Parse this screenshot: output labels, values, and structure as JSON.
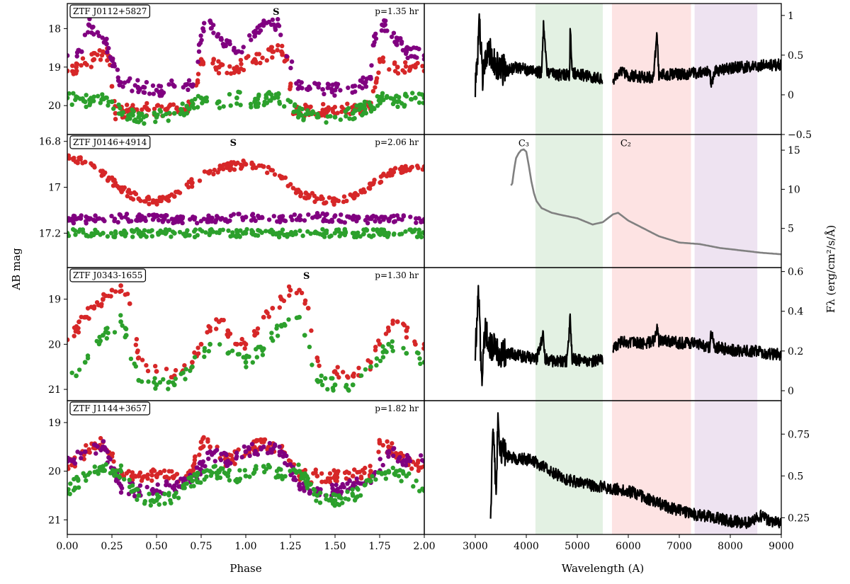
{
  "figure": {
    "left_ylabel": "AB mag",
    "right_ylabel": "Fλ (erg/cm²/s/Å)",
    "left_xlabel": "Phase",
    "right_xlabel": "Wavelength (A)"
  },
  "colors": {
    "g": "#2ca02c",
    "r": "#d62728",
    "i": "#800080",
    "spectrum": "#000000",
    "spectrum_alt": "#808080",
    "band_g": "#e3f1e3",
    "band_r": "#fde3e3",
    "band_i": "#eee3f1"
  },
  "chart_data": [
    {
      "type": "scatter",
      "panel": "light_curve",
      "object": "ZTF J0112+5827",
      "period_label": "p=1.35 hr",
      "marker": "S",
      "marker_phase": 1.17,
      "xlim": [
        0,
        2
      ],
      "ylim": [
        20.75,
        17.35
      ],
      "inverted_y": true,
      "yticks": [
        18,
        19,
        20
      ],
      "series": [
        {
          "band": "r",
          "x": [
            0.0,
            0.05,
            0.1,
            0.15,
            0.2,
            0.23,
            0.25,
            0.27,
            0.35,
            0.45,
            0.55,
            0.65,
            0.7,
            0.73,
            0.75,
            0.85,
            0.95,
            1.05,
            1.15,
            1.2,
            1.23,
            1.25,
            1.27,
            1.35,
            1.45,
            1.55,
            1.65,
            1.7,
            1.73,
            1.75,
            1.85,
            1.95,
            2.0
          ],
          "y": [
            19.1,
            19.0,
            18.9,
            18.8,
            18.6,
            18.7,
            19.5,
            20.2,
            20.1,
            20.1,
            20.1,
            20.1,
            20.0,
            19.4,
            18.8,
            19.0,
            19.0,
            18.8,
            18.6,
            18.6,
            18.8,
            19.5,
            20.2,
            20.1,
            20.1,
            20.1,
            20.1,
            20.0,
            19.4,
            18.8,
            19.0,
            19.0,
            19.1
          ]
        },
        {
          "band": "g",
          "x": [
            0.0,
            0.1,
            0.2,
            0.25,
            0.3,
            0.4,
            0.5,
            0.6,
            0.7,
            0.75,
            0.85,
            0.95,
            1.05,
            1.15,
            1.25,
            1.3,
            1.4,
            1.5,
            1.6,
            1.7,
            1.75,
            1.85,
            1.95,
            2.0
          ],
          "y": [
            19.8,
            19.9,
            19.8,
            19.9,
            20.2,
            20.3,
            20.3,
            20.2,
            20.0,
            19.8,
            19.9,
            19.8,
            19.9,
            19.8,
            19.9,
            20.2,
            20.3,
            20.3,
            20.2,
            20.0,
            19.8,
            19.9,
            19.8,
            19.8
          ]
        },
        {
          "band": "i",
          "x": [
            0.0,
            0.08,
            0.12,
            0.17,
            0.22,
            0.3,
            0.5,
            0.6,
            0.7,
            0.76,
            0.8,
            0.84,
            0.95,
            1.05,
            1.1,
            1.18,
            1.3,
            1.5,
            1.6,
            1.7,
            1.72,
            1.78,
            1.9,
            2.0
          ],
          "y": [
            18.7,
            18.6,
            17.9,
            18.1,
            18.4,
            19.4,
            19.6,
            19.5,
            19.5,
            18.0,
            17.8,
            18.2,
            18.6,
            18.2,
            17.9,
            17.9,
            19.5,
            19.6,
            19.5,
            19.3,
            18.2,
            17.9,
            18.6,
            18.7
          ]
        }
      ]
    },
    {
      "type": "scatter",
      "panel": "light_curve",
      "object": "ZTF J0146+4914",
      "period_label": "p=2.06 hr",
      "marker": "S",
      "marker_phase": 0.93,
      "xlim": [
        0,
        2
      ],
      "ylim": [
        17.35,
        16.77
      ],
      "inverted_y": true,
      "yticks": [
        16.8,
        17.0,
        17.2
      ],
      "series": [
        {
          "band": "r",
          "x": [
            0.0,
            0.1,
            0.2,
            0.3,
            0.4,
            0.5,
            0.6,
            0.7,
            0.8,
            0.9,
            1.0,
            1.1,
            1.2,
            1.3,
            1.4,
            1.5,
            1.6,
            1.7,
            1.8,
            1.9,
            2.0
          ],
          "y": [
            16.87,
            16.89,
            16.94,
            17.01,
            17.05,
            17.06,
            17.04,
            16.98,
            16.93,
            16.91,
            16.9,
            16.91,
            16.96,
            17.02,
            17.05,
            17.06,
            17.04,
            16.99,
            16.94,
            16.92,
            16.91
          ]
        },
        {
          "band": "i",
          "x": [
            0.0,
            0.2,
            0.4,
            0.6,
            0.8,
            1.0,
            1.2,
            1.4,
            1.6,
            1.8,
            2.0
          ],
          "y": [
            17.14,
            17.14,
            17.13,
            17.14,
            17.14,
            17.13,
            17.14,
            17.13,
            17.14,
            17.14,
            17.14
          ]
        },
        {
          "band": "g",
          "x": [
            0.0,
            0.2,
            0.4,
            0.6,
            0.8,
            1.0,
            1.2,
            1.4,
            1.6,
            1.8,
            2.0
          ],
          "y": [
            17.2,
            17.2,
            17.2,
            17.2,
            17.2,
            17.2,
            17.2,
            17.2,
            17.2,
            17.2,
            17.2
          ]
        }
      ]
    },
    {
      "type": "scatter",
      "panel": "light_curve",
      "object": "ZTF J0343-1655",
      "period_label": "p=1.30 hr",
      "marker": "S",
      "marker_phase": 1.34,
      "xlim": [
        0,
        2
      ],
      "ylim": [
        21.25,
        18.3
      ],
      "inverted_y": true,
      "yticks": [
        19,
        20,
        21
      ],
      "series": [
        {
          "band": "r",
          "x": [
            0.0,
            0.05,
            0.1,
            0.15,
            0.2,
            0.25,
            0.3,
            0.35,
            0.4,
            0.5,
            0.6,
            0.7,
            0.75,
            0.8,
            0.85,
            0.9,
            0.95,
            1.0,
            1.05,
            1.1,
            1.15,
            1.2,
            1.25,
            1.3,
            1.35,
            1.4,
            1.5,
            1.6,
            1.7,
            1.75,
            1.8,
            1.85,
            1.9,
            1.95,
            2.0
          ],
          "y": [
            19.9,
            19.7,
            19.4,
            19.2,
            19.0,
            18.8,
            18.7,
            19.1,
            20.3,
            20.6,
            20.7,
            20.4,
            20.0,
            19.7,
            19.5,
            19.7,
            20.0,
            20.0,
            19.8,
            19.4,
            19.2,
            19.0,
            18.8,
            18.8,
            19.2,
            20.3,
            20.6,
            20.7,
            20.4,
            20.0,
            19.7,
            19.5,
            19.7,
            20.0,
            20.0
          ]
        },
        {
          "band": "g",
          "x": [
            0.05,
            0.1,
            0.2,
            0.3,
            0.33,
            0.4,
            0.5,
            0.6,
            0.7,
            0.8,
            0.9,
            1.0,
            1.1,
            1.2,
            1.3,
            1.33,
            1.4,
            1.5,
            1.6,
            1.7,
            1.8,
            1.9,
            2.0
          ],
          "y": [
            20.7,
            20.4,
            19.8,
            19.5,
            19.8,
            20.8,
            20.9,
            20.9,
            20.5,
            20.0,
            20.2,
            20.4,
            20.1,
            19.6,
            19.4,
            19.8,
            20.8,
            20.9,
            20.9,
            20.5,
            20.0,
            20.2,
            20.4
          ]
        }
      ]
    },
    {
      "type": "scatter",
      "panel": "light_curve",
      "object": "ZTF J1144+3657",
      "period_label": "p=1.82 hr",
      "xlim": [
        0,
        2
      ],
      "ylim": [
        21.3,
        18.55
      ],
      "inverted_y": true,
      "yticks": [
        19,
        20,
        21
      ],
      "series": [
        {
          "band": "r",
          "x": [
            0.0,
            0.1,
            0.2,
            0.25,
            0.3,
            0.4,
            0.5,
            0.6,
            0.7,
            0.75,
            0.8,
            0.9,
            1.0,
            1.1,
            1.2,
            1.25,
            1.3,
            1.4,
            1.5,
            1.6,
            1.7,
            1.75,
            1.8,
            1.9,
            2.0
          ],
          "y": [
            19.9,
            19.6,
            19.4,
            19.7,
            20.1,
            20.1,
            20.1,
            20.1,
            20.0,
            19.4,
            19.5,
            19.8,
            19.6,
            19.4,
            19.5,
            19.8,
            20.1,
            20.1,
            20.1,
            20.1,
            20.0,
            19.4,
            19.5,
            19.8,
            19.9
          ]
        },
        {
          "band": "i",
          "x": [
            0.0,
            0.1,
            0.2,
            0.3,
            0.4,
            0.5,
            0.6,
            0.7,
            0.8,
            0.9,
            1.0,
            1.1,
            1.2,
            1.3,
            1.4,
            1.5,
            1.6,
            1.7,
            1.8,
            1.9,
            2.0
          ],
          "y": [
            19.8,
            19.6,
            19.5,
            20.3,
            20.4,
            20.4,
            20.3,
            20.2,
            19.6,
            19.8,
            19.6,
            19.5,
            19.6,
            20.3,
            20.4,
            20.4,
            20.3,
            20.2,
            19.6,
            19.8,
            19.8
          ]
        },
        {
          "band": "g",
          "x": [
            0.0,
            0.1,
            0.2,
            0.3,
            0.4,
            0.5,
            0.6,
            0.7,
            0.8,
            0.9,
            1.0,
            1.1,
            1.2,
            1.3,
            1.4,
            1.5,
            1.6,
            1.7,
            1.8,
            1.9,
            2.0
          ],
          "y": [
            20.4,
            20.1,
            19.9,
            20.0,
            20.5,
            20.6,
            20.5,
            20.2,
            20.0,
            20.1,
            20.1,
            19.9,
            20.1,
            20.0,
            20.5,
            20.6,
            20.5,
            20.2,
            20.0,
            20.1,
            20.4
          ]
        }
      ]
    },
    {
      "type": "line",
      "panel": "spectrum",
      "object": "ZTF J0112+5827",
      "xlim": [
        2000,
        9000
      ],
      "ylim": [
        -0.5,
        1.15
      ],
      "yticks": [
        -0.5,
        0.0,
        0.5,
        1.0
      ],
      "series": [
        {
          "name": "",
          "x": [
            3000,
            3080,
            3150,
            3250,
            3400,
            3600,
            3800,
            4100,
            4300,
            4340,
            4400,
            4600,
            4850,
            4861,
            4900,
            5100,
            5300,
            5500
          ],
          "y": [
            0.1,
            0.85,
            0.2,
            0.6,
            0.35,
            0.3,
            0.35,
            0.3,
            0.28,
            0.9,
            0.3,
            0.25,
            0.25,
            0.88,
            0.28,
            0.25,
            0.22,
            0.2
          ]
        },
        {
          "name": "",
          "x": [
            5700,
            5800,
            5880,
            5950,
            6100,
            6300,
            6500,
            6563,
            6600,
            6800,
            7000,
            7200,
            7400,
            7600,
            7620,
            7700,
            7900,
            8100,
            8300,
            8600,
            9000
          ],
          "y": [
            0.2,
            0.25,
            0.32,
            0.24,
            0.24,
            0.22,
            0.22,
            0.82,
            0.24,
            0.26,
            0.26,
            0.27,
            0.28,
            0.3,
            0.12,
            0.3,
            0.32,
            0.35,
            0.35,
            0.37,
            0.38
          ]
        }
      ]
    },
    {
      "type": "line",
      "panel": "spectrum",
      "object": "ZTF J0146+4914",
      "xlim": [
        2000,
        9000
      ],
      "ylim": [
        0,
        17
      ],
      "yticks": [
        5,
        10,
        15
      ],
      "annotations": [
        {
          "text": "C₃",
          "x": 3950,
          "y": 15.5
        },
        {
          "text": "C₂",
          "x": 5950,
          "y": 15.5
        }
      ],
      "series": [
        {
          "name": "",
          "x": [
            3700,
            3720,
            3760,
            3800,
            3850,
            3900,
            3950,
            4000,
            4050,
            4100,
            4150,
            4200,
            4300,
            4500,
            4700,
            5000,
            5300,
            5500,
            5700,
            5800,
            6000,
            6300,
            6600,
            7000,
            7400,
            7800,
            8200,
            8600,
            9000
          ],
          "y": [
            10.5,
            10.5,
            12.5,
            14.0,
            14.6,
            15.0,
            15.1,
            14.8,
            13.0,
            11.0,
            9.5,
            8.5,
            7.6,
            7.0,
            6.7,
            6.3,
            5.5,
            5.8,
            6.8,
            7.0,
            6.0,
            5.0,
            4.0,
            3.2,
            3.0,
            2.5,
            2.2,
            1.9,
            1.7
          ]
        }
      ]
    },
    {
      "type": "line",
      "panel": "spectrum",
      "object": "ZTF J0343-1655",
      "xlim": [
        2000,
        9000
      ],
      "ylim": [
        -0.05,
        0.62
      ],
      "yticks": [
        0.0,
        0.2,
        0.4,
        0.6
      ],
      "series": [
        {
          "name": "",
          "x": [
            3000,
            3060,
            3120,
            3200,
            3300,
            3500,
            3800,
            4000,
            4200,
            4330,
            4370,
            4500,
            4800,
            4861,
            4900,
            5100,
            5300,
            5500
          ],
          "y": [
            0.2,
            0.52,
            0.05,
            0.3,
            0.22,
            0.2,
            0.18,
            0.17,
            0.16,
            0.28,
            0.16,
            0.15,
            0.15,
            0.37,
            0.16,
            0.15,
            0.15,
            0.16
          ]
        },
        {
          "name": "",
          "x": [
            5700,
            5900,
            6100,
            6300,
            6500,
            6563,
            6600,
            6800,
            7000,
            7200,
            7400,
            7600,
            7620,
            7700,
            7900,
            8100,
            8300,
            8500,
            8700,
            9000
          ],
          "y": [
            0.22,
            0.25,
            0.24,
            0.24,
            0.25,
            0.32,
            0.25,
            0.25,
            0.24,
            0.24,
            0.23,
            0.22,
            0.29,
            0.22,
            0.21,
            0.2,
            0.2,
            0.2,
            0.19,
            0.18
          ]
        }
      ]
    },
    {
      "type": "line",
      "panel": "spectrum",
      "object": "ZTF J1144+3657",
      "xlim": [
        2000,
        9000
      ],
      "ylim": [
        0.15,
        0.95
      ],
      "yticks": [
        0.25,
        0.5,
        0.75
      ],
      "series": [
        {
          "name": "",
          "x": [
            3300,
            3350,
            3400,
            3450,
            3500,
            3600,
            3800,
            4000,
            4200,
            4500,
            4800,
            5000,
            5300,
            5600,
            5800,
            6100,
            6500,
            6900,
            7300,
            7700,
            8000,
            8400,
            8600,
            8700,
            9000
          ],
          "y": [
            0.3,
            0.82,
            0.4,
            0.85,
            0.65,
            0.62,
            0.6,
            0.6,
            0.58,
            0.52,
            0.48,
            0.46,
            0.44,
            0.43,
            0.42,
            0.4,
            0.35,
            0.3,
            0.27,
            0.25,
            0.23,
            0.22,
            0.26,
            0.24,
            0.21
          ]
        }
      ]
    }
  ]
}
